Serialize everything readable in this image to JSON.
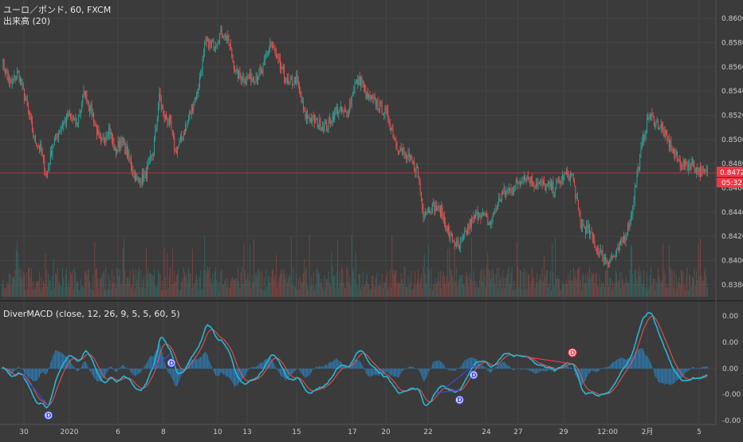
{
  "main_pane": {
    "title": "ユーロ／ポンド, 60, FXCM",
    "volume_label": "出来高 (20)",
    "price_axis": [
      "0.86000",
      "0.85800",
      "0.85600",
      "0.85400",
      "0.85200",
      "0.85000",
      "0.84800",
      "0.84600",
      "0.84400",
      "0.84200",
      "0.84000",
      "0.83800"
    ],
    "current_price": "0.84723",
    "countdown": "05:32"
  },
  "indicator_pane": {
    "title": "DiverMACD (close, 12, 26, 9, 5, 5, 60, 5)",
    "axis": [
      "0.00",
      "0.00",
      "0.00",
      "-0.00",
      "-0.00"
    ],
    "divergence_label": "D"
  },
  "time_axis": [
    "30",
    "2020",
    "6",
    "8",
    "10",
    "13",
    "15",
    "17",
    "20",
    "22",
    "24",
    "27",
    "29",
    "12:00",
    "2月",
    "5"
  ],
  "colors": {
    "background": "#3b3b3b",
    "up_candle": "#26a69a",
    "down_candle": "#ef5350",
    "price_line": "#f23645",
    "macd_line": "#22b8d8",
    "signal_line": "#ef5350",
    "histogram": "#2a86c9",
    "bull_divergence": "#3d4bd6",
    "bear_divergence": "#f23645"
  },
  "chart_data": {
    "type": "candlestick",
    "instrument": "ユーロ／ポンド",
    "timeframe": "60",
    "source": "FXCM",
    "ylim": [
      0.837,
      0.861
    ],
    "anchors": [
      [
        0,
        0.8565
      ],
      [
        8,
        0.8545
      ],
      [
        16,
        0.8555
      ],
      [
        24,
        0.853
      ],
      [
        32,
        0.85
      ],
      [
        38,
        0.8492
      ],
      [
        44,
        0.847
      ],
      [
        50,
        0.8495
      ],
      [
        58,
        0.851
      ],
      [
        66,
        0.852
      ],
      [
        74,
        0.8512
      ],
      [
        82,
        0.854
      ],
      [
        90,
        0.852
      ],
      [
        98,
        0.8495
      ],
      [
        106,
        0.851
      ],
      [
        112,
        0.849
      ],
      [
        118,
        0.85
      ],
      [
        126,
        0.8485
      ],
      [
        134,
        0.8465
      ],
      [
        142,
        0.847
      ],
      [
        150,
        0.849
      ],
      [
        156,
        0.8535
      ],
      [
        160,
        0.852
      ],
      [
        166,
        0.8515
      ],
      [
        172,
        0.849
      ],
      [
        178,
        0.85
      ],
      [
        186,
        0.852
      ],
      [
        194,
        0.854
      ],
      [
        202,
        0.858
      ],
      [
        210,
        0.8578
      ],
      [
        218,
        0.859
      ],
      [
        225,
        0.858
      ],
      [
        232,
        0.8555
      ],
      [
        240,
        0.855
      ],
      [
        250,
        0.8552
      ],
      [
        258,
        0.8555
      ],
      [
        266,
        0.858
      ],
      [
        276,
        0.856
      ],
      [
        284,
        0.8545
      ],
      [
        292,
        0.855
      ],
      [
        300,
        0.852
      ],
      [
        310,
        0.8515
      ],
      [
        322,
        0.851
      ],
      [
        332,
        0.8525
      ],
      [
        342,
        0.852
      ],
      [
        350,
        0.8545
      ],
      [
        356,
        0.855
      ],
      [
        362,
        0.8535
      ],
      [
        372,
        0.853
      ],
      [
        382,
        0.852
      ],
      [
        392,
        0.8495
      ],
      [
        402,
        0.8485
      ],
      [
        412,
        0.8475
      ],
      [
        418,
        0.844
      ],
      [
        428,
        0.8445
      ],
      [
        436,
        0.844
      ],
      [
        444,
        0.842
      ],
      [
        454,
        0.841
      ],
      [
        464,
        0.843
      ],
      [
        474,
        0.844
      ],
      [
        484,
        0.843
      ],
      [
        496,
        0.8455
      ],
      [
        508,
        0.846
      ],
      [
        518,
        0.847
      ],
      [
        528,
        0.8465
      ],
      [
        538,
        0.8462
      ],
      [
        548,
        0.846
      ],
      [
        558,
        0.847
      ],
      [
        566,
        0.847
      ],
      [
        574,
        0.843
      ],
      [
        582,
        0.8425
      ],
      [
        590,
        0.841
      ],
      [
        600,
        0.84
      ],
      [
        610,
        0.8405
      ],
      [
        618,
        0.842
      ],
      [
        624,
        0.8435
      ],
      [
        630,
        0.847
      ],
      [
        636,
        0.85
      ],
      [
        642,
        0.852
      ],
      [
        648,
        0.8515
      ],
      [
        654,
        0.851
      ],
      [
        660,
        0.85
      ],
      [
        666,
        0.849
      ],
      [
        672,
        0.8482
      ],
      [
        678,
        0.8478
      ],
      [
        684,
        0.848
      ],
      [
        690,
        0.8475
      ],
      [
        696,
        0.8472
      ],
      [
        700,
        0.8473
      ]
    ],
    "price_line": 0.84723,
    "volume_label": "出来高 (20)",
    "indicator": {
      "name": "DiverMACD",
      "params": "close, 12, 26, 9, 5, 5, 60, 5",
      "divergence_markers": 5
    }
  }
}
